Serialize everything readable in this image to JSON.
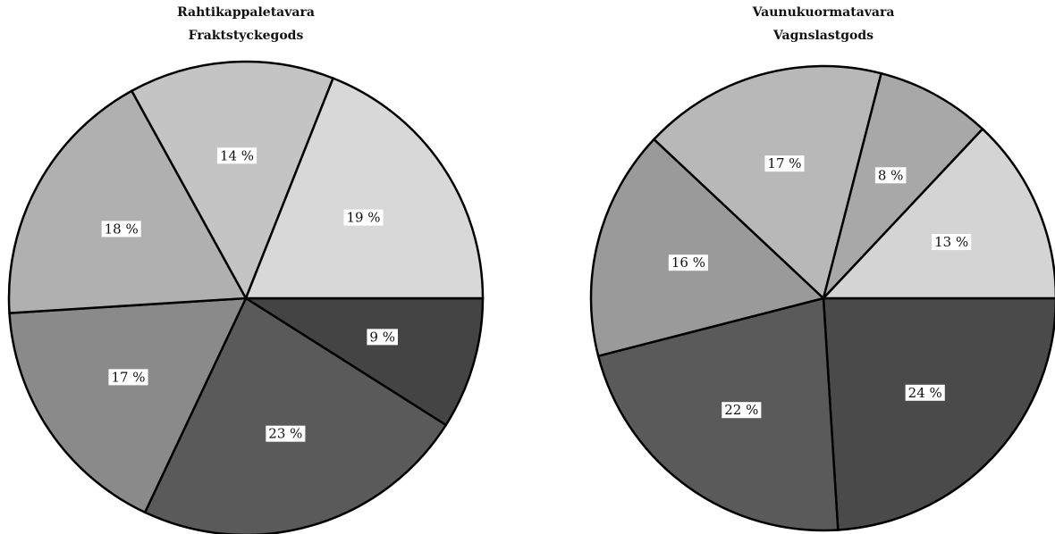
{
  "chart_data": [
    {
      "type": "pie",
      "title": "Rahtikappaletavara",
      "subtitle": "Fraktstyckegods",
      "categories": [
        null,
        null,
        null,
        null,
        null,
        null
      ],
      "values": [
        9,
        23,
        17,
        18,
        14,
        19
      ],
      "value_labels": [
        "9 %",
        "23 %",
        "17 %",
        "18 %",
        "14 %",
        "19 %"
      ],
      "colors": [
        "#444444",
        "#5a5a5a",
        "#8a8a8a",
        "#b0b0b0",
        "#c4c4c4",
        "#d8d8d8"
      ]
    },
    {
      "type": "pie",
      "title": "Vaunukuormatavara",
      "subtitle": "Vagnslastgods",
      "categories": [
        null,
        null,
        null,
        null,
        null,
        null
      ],
      "values": [
        24,
        22,
        16,
        17,
        8,
        13
      ],
      "value_labels": [
        "24 %",
        "22 %",
        "16 %",
        "17 %",
        "8 %",
        "13 %"
      ],
      "colors": [
        "#4a4a4a",
        "#5a5a5a",
        "#9a9a9a",
        "#b8b8b8",
        "#a8a8a8",
        "#d4d4d4"
      ]
    }
  ]
}
